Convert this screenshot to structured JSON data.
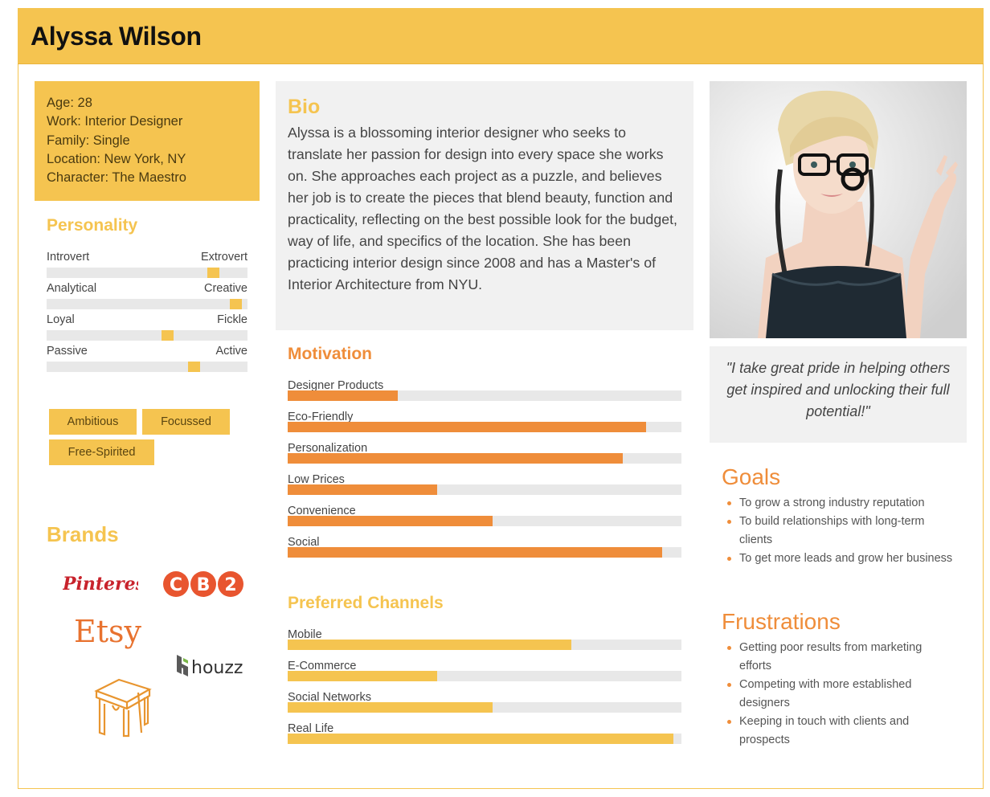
{
  "header": {
    "name": "Alyssa Wilson"
  },
  "info": {
    "age": "Age: 28",
    "work": "Work: Interior Designer",
    "family": "Family: Single",
    "location": "Location: New York, NY",
    "character": "Character: The Maestro"
  },
  "personality": {
    "title": "Personality",
    "traits": [
      {
        "left": "Introvert",
        "right": "Extrovert",
        "value": 0.85
      },
      {
        "left": "Analytical",
        "right": "Creative",
        "value": 0.97
      },
      {
        "left": "Loyal",
        "right": "Fickle",
        "value": 0.61
      },
      {
        "left": "Passive",
        "right": "Active",
        "value": 0.75
      }
    ]
  },
  "tags": [
    "Ambitious",
    "Focussed",
    "Free-Spirited"
  ],
  "brands": {
    "title": "Brands",
    "items": [
      "Pinterest",
      "CB2",
      "Etsy",
      "houzz",
      "furniture-logo"
    ]
  },
  "bio": {
    "title": "Bio",
    "text": "Alyssa is a blossoming interior designer who seeks to translate her passion for design into every space she works on. She approaches each project as a puzzle, and believes her job is to create the pieces that blend beauty, function and practicality, reflecting on the best possible look for the budget, way of life, and specifics of the location. She has been practicing interior design since 2008 and has a Master's of Interior Architecture from NYU."
  },
  "motivation": {
    "title": "Motivation",
    "color": "#ef8d3a",
    "items": [
      {
        "label": "Designer Products",
        "value": 0.28
      },
      {
        "label": "Eco-Friendly",
        "value": 0.91
      },
      {
        "label": "Personalization",
        "value": 0.85
      },
      {
        "label": "Low Prices",
        "value": 0.38
      },
      {
        "label": "Convenience",
        "value": 0.52
      },
      {
        "label": "Social",
        "value": 0.95
      }
    ]
  },
  "channels": {
    "title": "Preferred Channels",
    "color": "#f5c450",
    "items": [
      {
        "label": "Mobile",
        "value": 0.72
      },
      {
        "label": "E-Commerce",
        "value": 0.38
      },
      {
        "label": "Social Networks",
        "value": 0.52
      },
      {
        "label": "Real Life",
        "value": 0.98
      }
    ]
  },
  "quote": "\"I take great pride in helping others get inspired and unlocking their full potential!\"",
  "goals": {
    "title": "Goals",
    "items": [
      "To grow a strong industry reputation",
      "To build relationships with long-term clients",
      "To get more leads and grow her business"
    ]
  },
  "frustrations": {
    "title": "Frustrations",
    "items": [
      "Getting poor results from marketing efforts",
      "Competing with more established designers",
      "Keeping in touch with clients and prospects"
    ]
  }
}
